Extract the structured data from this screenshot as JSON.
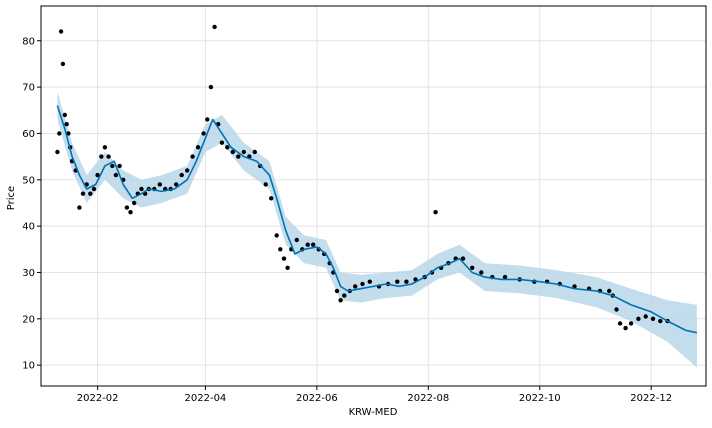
{
  "chart_data": {
    "type": "line",
    "title": "",
    "xlabel": "KRW-MED",
    "ylabel": "Price",
    "x_ticks": [
      "2022-02",
      "2022-04",
      "2022-06",
      "2022-08",
      "2022-10",
      "2022-12"
    ],
    "y_ticks": [
      10,
      20,
      30,
      40,
      50,
      60,
      70,
      80
    ],
    "xlim": [
      "2022-01-01",
      "2022-12-31"
    ],
    "ylim": [
      5.5,
      87.5
    ],
    "grid": true,
    "colors": {
      "actual": "#000000",
      "forecast": "#0072B2",
      "interval": "#b9d7ea"
    },
    "series": [
      {
        "role": "forecast",
        "x": [
          "2022-01-10",
          "2022-01-14",
          "2022-01-18",
          "2022-01-22",
          "2022-01-26",
          "2022-01-31",
          "2022-02-05",
          "2022-02-10",
          "2022-02-15",
          "2022-02-20",
          "2022-02-25",
          "2022-03-01",
          "2022-03-08",
          "2022-03-15",
          "2022-03-22",
          "2022-03-27",
          "2022-04-01",
          "2022-04-05",
          "2022-04-10",
          "2022-04-15",
          "2022-04-22",
          "2022-04-29",
          "2022-05-06",
          "2022-05-10",
          "2022-05-15",
          "2022-05-20",
          "2022-05-25",
          "2022-06-01",
          "2022-06-06",
          "2022-06-10",
          "2022-06-14",
          "2022-06-18",
          "2022-06-25",
          "2022-07-02",
          "2022-07-09",
          "2022-07-16",
          "2022-07-23",
          "2022-07-30",
          "2022-08-06",
          "2022-08-13",
          "2022-08-18",
          "2022-08-25",
          "2022-09-01",
          "2022-09-10",
          "2022-09-20",
          "2022-10-01",
          "2022-10-10",
          "2022-10-20",
          "2022-11-01",
          "2022-11-10",
          "2022-11-20",
          "2022-12-01",
          "2022-12-10",
          "2022-12-20",
          "2022-12-26"
        ],
        "y": [
          66,
          61,
          55,
          51,
          48,
          49,
          53,
          54,
          49,
          46,
          47,
          48,
          47.5,
          48,
          50,
          54,
          59,
          63,
          60,
          57,
          55,
          54,
          51,
          46,
          39,
          34,
          35,
          35.5,
          34,
          31,
          27,
          26,
          26.5,
          27,
          27.5,
          27,
          27.5,
          29,
          31,
          32,
          33,
          30,
          29,
          28.5,
          28.5,
          28,
          27.5,
          26.5,
          26,
          25,
          23,
          21.5,
          19.5,
          17.5,
          17
        ]
      },
      {
        "role": "uncertainty_upper",
        "x": [
          "2022-01-10",
          "2022-01-18",
          "2022-01-26",
          "2022-02-05",
          "2022-02-15",
          "2022-02-25",
          "2022-03-08",
          "2022-03-22",
          "2022-04-01",
          "2022-04-10",
          "2022-04-22",
          "2022-05-06",
          "2022-05-15",
          "2022-05-25",
          "2022-06-06",
          "2022-06-14",
          "2022-06-25",
          "2022-07-09",
          "2022-07-23",
          "2022-08-06",
          "2022-08-18",
          "2022-09-01",
          "2022-09-20",
          "2022-10-10",
          "2022-11-01",
          "2022-11-20",
          "2022-12-10",
          "2022-12-26"
        ],
        "y": [
          69,
          58,
          51,
          56,
          52,
          50,
          51,
          53,
          62,
          64,
          58,
          54,
          42,
          38,
          37,
          30,
          29.5,
          30,
          30.5,
          34,
          36,
          32,
          31.5,
          30.5,
          29,
          26.5,
          24,
          23
        ]
      },
      {
        "role": "uncertainty_lower",
        "x": [
          "2022-01-10",
          "2022-01-18",
          "2022-01-26",
          "2022-02-05",
          "2022-02-15",
          "2022-02-25",
          "2022-03-08",
          "2022-03-22",
          "2022-04-01",
          "2022-04-10",
          "2022-04-22",
          "2022-05-06",
          "2022-05-15",
          "2022-05-25",
          "2022-06-06",
          "2022-06-14",
          "2022-06-25",
          "2022-07-09",
          "2022-07-23",
          "2022-08-06",
          "2022-08-18",
          "2022-09-01",
          "2022-09-20",
          "2022-10-10",
          "2022-11-01",
          "2022-11-20",
          "2022-12-10",
          "2022-12-26"
        ],
        "y": [
          63,
          52,
          45,
          50,
          46,
          44,
          45,
          47,
          56,
          58,
          52,
          48,
          36,
          32,
          31,
          24,
          23.5,
          24.5,
          25,
          28.5,
          30,
          26,
          25.5,
          24.5,
          22.5,
          19.5,
          15,
          9.5
        ]
      },
      {
        "role": "actual",
        "x": [
          "2022-01-10",
          "2022-01-11",
          "2022-01-12",
          "2022-01-13",
          "2022-01-14",
          "2022-01-15",
          "2022-01-16",
          "2022-01-17",
          "2022-01-18",
          "2022-01-20",
          "2022-01-22",
          "2022-01-24",
          "2022-01-26",
          "2022-01-28",
          "2022-01-30",
          "2022-02-01",
          "2022-02-03",
          "2022-02-05",
          "2022-02-07",
          "2022-02-09",
          "2022-02-11",
          "2022-02-13",
          "2022-02-15",
          "2022-02-17",
          "2022-02-19",
          "2022-02-21",
          "2022-02-23",
          "2022-02-25",
          "2022-02-27",
          "2022-03-01",
          "2022-03-04",
          "2022-03-07",
          "2022-03-10",
          "2022-03-13",
          "2022-03-16",
          "2022-03-19",
          "2022-03-22",
          "2022-03-25",
          "2022-03-28",
          "2022-03-31",
          "2022-04-02",
          "2022-04-04",
          "2022-04-06",
          "2022-04-08",
          "2022-04-10",
          "2022-04-13",
          "2022-04-16",
          "2022-04-19",
          "2022-04-22",
          "2022-04-25",
          "2022-04-28",
          "2022-05-01",
          "2022-05-04",
          "2022-05-07",
          "2022-05-10",
          "2022-05-12",
          "2022-05-14",
          "2022-05-16",
          "2022-05-18",
          "2022-05-21",
          "2022-05-24",
          "2022-05-27",
          "2022-05-30",
          "2022-06-02",
          "2022-06-05",
          "2022-06-08",
          "2022-06-10",
          "2022-06-12",
          "2022-06-14",
          "2022-06-16",
          "2022-06-19",
          "2022-06-22",
          "2022-06-26",
          "2022-06-30",
          "2022-07-05",
          "2022-07-10",
          "2022-07-15",
          "2022-07-20",
          "2022-07-25",
          "2022-07-30",
          "2022-08-03",
          "2022-08-05",
          "2022-08-08",
          "2022-08-12",
          "2022-08-16",
          "2022-08-20",
          "2022-08-25",
          "2022-08-30",
          "2022-09-05",
          "2022-09-12",
          "2022-09-20",
          "2022-09-28",
          "2022-10-05",
          "2022-10-12",
          "2022-10-20",
          "2022-10-28",
          "2022-11-03",
          "2022-11-08",
          "2022-11-10",
          "2022-11-12",
          "2022-11-14",
          "2022-11-17",
          "2022-11-20",
          "2022-11-24",
          "2022-11-28",
          "2022-12-02",
          "2022-12-06",
          "2022-12-10"
        ],
        "y": [
          56,
          60,
          82,
          75,
          64,
          62,
          60,
          57,
          54,
          52,
          44,
          47,
          49,
          47,
          48,
          51,
          55,
          57,
          55,
          53,
          51,
          53,
          50,
          44,
          43,
          45,
          47,
          48,
          47,
          48,
          48,
          49,
          48,
          48,
          49,
          51,
          52,
          55,
          57,
          60,
          63,
          70,
          83,
          62,
          58,
          57,
          56,
          55,
          56,
          55,
          56,
          53,
          49,
          46,
          38,
          35,
          33,
          31,
          35,
          37,
          35,
          36,
          36,
          35,
          34,
          32,
          30,
          26,
          24,
          25,
          26,
          27,
          27.5,
          28,
          27,
          27.5,
          28,
          28,
          28.5,
          29,
          30,
          43,
          31,
          32,
          33,
          33,
          31,
          30,
          29,
          29,
          28.5,
          28,
          28,
          27.5,
          27,
          26.5,
          26,
          26,
          25,
          22,
          19,
          18,
          19,
          20,
          20.5,
          20,
          19.5,
          19.5
        ]
      }
    ]
  }
}
